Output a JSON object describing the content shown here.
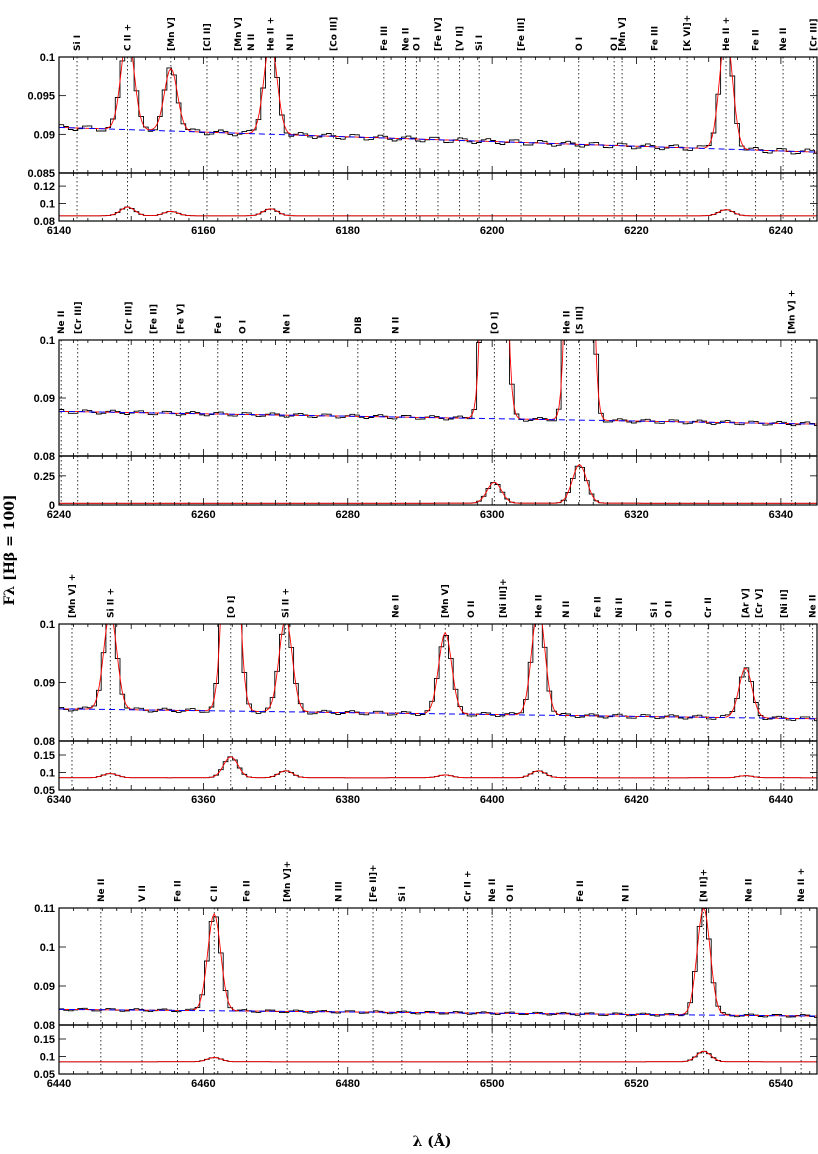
{
  "chart_data": {
    "type": "line",
    "xlabel": "λ (Å)",
    "ylabel": "Fλ [Hβ = 100]",
    "colors": {
      "observed": "#000000",
      "model": "#ff0000",
      "continuum": "#0000ff",
      "line_marker": "#000000"
    },
    "panels": [
      {
        "name": "panel-1",
        "xlim": [
          6140,
          6245
        ],
        "xticks": [
          6140,
          6160,
          6180,
          6200,
          6220,
          6240
        ],
        "upper": {
          "ylim": [
            0.085,
            0.1
          ],
          "yticks": [
            0.09,
            0.095,
            0.1
          ],
          "ytick_labels": [
            "0.09",
            "0.095",
            "0.1"
          ],
          "bottom_label": "0.085"
        },
        "lower": {
          "ylim": [
            0.08,
            0.135
          ],
          "yticks": [
            0.08,
            0.1,
            0.12
          ],
          "ytick_labels": [
            "0.08",
            "0.1",
            "0.12"
          ],
          "base": 0.086
        },
        "continuum": [
          [
            6140,
            0.0909
          ],
          [
            6245,
            0.0877
          ]
        ],
        "lines": [
          {
            "w": 6142.5,
            "label": "Si I"
          },
          {
            "w": 6149.5,
            "label": "C II +",
            "peak": 0.103,
            "amp": 0.01
          },
          {
            "w": 6155.5,
            "label": "[Mn V]",
            "peak": 0.0985,
            "amp": 0.005
          },
          {
            "w": 6160.5,
            "label": "[Cl II]"
          },
          {
            "w": 6164.8,
            "label": "[Mn V]"
          },
          {
            "w": 6166.6,
            "label": "N II"
          },
          {
            "w": 6169.3,
            "label": "He II +",
            "peak": 0.102,
            "amp": 0.008
          },
          {
            "w": 6172,
            "label": "N II"
          },
          {
            "w": 6178,
            "label": "[Co III]"
          },
          {
            "w": 6185,
            "label": "Fe III"
          },
          {
            "w": 6188,
            "label": "Ne II"
          },
          {
            "w": 6189.5,
            "label": "O I"
          },
          {
            "w": 6192.5,
            "label": "[Fe IV]"
          },
          {
            "w": 6195.5,
            "label": "[V II]"
          },
          {
            "w": 6198.2,
            "label": "Si I"
          },
          {
            "w": 6204,
            "label": "[Fe III]"
          },
          {
            "w": 6212,
            "label": "O I"
          },
          {
            "w": 6216.9,
            "label": "O I"
          },
          {
            "w": 6218,
            "label": "[Mn V]"
          },
          {
            "w": 6222.5,
            "label": "Fe III"
          },
          {
            "w": 6227,
            "label": "[K VI]+"
          },
          {
            "w": 6232.4,
            "label": "He II +",
            "peak": 0.103,
            "amp": 0.007
          },
          {
            "w": 6236.5,
            "label": "Fe II"
          },
          {
            "w": 6240.3,
            "label": "Ne II"
          },
          {
            "w": 6244.5,
            "label": "[Cr III]"
          }
        ]
      },
      {
        "name": "panel-2",
        "xlim": [
          6240,
          6345
        ],
        "xticks": [
          6240,
          6260,
          6280,
          6300,
          6320,
          6340
        ],
        "upper": {
          "ylim": [
            0.08,
            0.1
          ],
          "yticks": [
            0.09,
            0.1
          ],
          "ytick_labels": [
            "0.09",
            "0.1"
          ],
          "bottom_label": "0.08"
        },
        "lower": {
          "ylim": [
            0,
            0.42
          ],
          "yticks": [
            0,
            0.25
          ],
          "ytick_labels": [
            "0",
            "0.25"
          ],
          "base": 0.015
        },
        "continuum": [
          [
            6240,
            0.0877
          ],
          [
            6345,
            0.0855
          ]
        ],
        "lines": [
          {
            "w": 6240.3,
            "label": "Ne II"
          },
          {
            "w": 6242.6,
            "label": "[Cr III]"
          },
          {
            "w": 6249.6,
            "label": "[Cr III]"
          },
          {
            "w": 6253.1,
            "label": "[Fe II]"
          },
          {
            "w": 6256.8,
            "label": "[Fe V]"
          },
          {
            "w": 6262,
            "label": "Fe I"
          },
          {
            "w": 6265.4,
            "label": "O I"
          },
          {
            "w": 6271.5,
            "label": "Ne I"
          },
          {
            "w": 6281.4,
            "label": "DIB"
          },
          {
            "w": 6286.6,
            "label": "N II"
          },
          {
            "w": 6300.3,
            "label": "[O I]",
            "peak": 0.3,
            "amp": 0.18
          },
          {
            "w": 6310.3,
            "label": "He II"
          },
          {
            "w": 6312.1,
            "label": "[S III]",
            "peak": 0.4,
            "amp": 0.33
          },
          {
            "w": 6341.5,
            "label": "[Mn V] +"
          }
        ]
      },
      {
        "name": "panel-3",
        "xlim": [
          6340,
          6445
        ],
        "xticks": [
          6340,
          6360,
          6380,
          6400,
          6420,
          6440
        ],
        "upper": {
          "ylim": [
            0.08,
            0.1
          ],
          "yticks": [
            0.09,
            0.1
          ],
          "ytick_labels": [
            "0.09",
            "0.1"
          ],
          "bottom_label": "0.08"
        },
        "lower": {
          "ylim": [
            0.05,
            0.19
          ],
          "yticks": [
            0.05,
            0.1,
            0.15
          ],
          "ytick_labels": [
            "0.05",
            "0.1",
            "0.15"
          ],
          "base": 0.085
        },
        "continuum": [
          [
            6340,
            0.0855
          ],
          [
            6445,
            0.0838
          ]
        ],
        "lines": [
          {
            "w": 6341.8,
            "label": "[Mn V] +"
          },
          {
            "w": 6347.1,
            "label": "Si II +",
            "peak": 0.102,
            "amp": 0.012
          },
          {
            "w": 6363.8,
            "label": "[O I]",
            "peak": 0.14,
            "amp": 0.06
          },
          {
            "w": 6371.4,
            "label": "Si II +",
            "peak": 0.101,
            "amp": 0.02
          },
          {
            "w": 6386.6,
            "label": "Ne II"
          },
          {
            "w": 6393.5,
            "label": "[Mn V]",
            "peak": 0.0985,
            "amp": 0.008
          },
          {
            "w": 6397.1,
            "label": "O II"
          },
          {
            "w": 6401.5,
            "label": "[Ni III]+"
          },
          {
            "w": 6406.4,
            "label": "He II",
            "peak": 0.103,
            "amp": 0.02
          },
          {
            "w": 6410.2,
            "label": "N II"
          },
          {
            "w": 6414.6,
            "label": "Fe II"
          },
          {
            "w": 6417.6,
            "label": "Ni II"
          },
          {
            "w": 6422.4,
            "label": "Si I"
          },
          {
            "w": 6424.4,
            "label": "O II"
          },
          {
            "w": 6429.9,
            "label": "Cr II"
          },
          {
            "w": 6435.1,
            "label": "[Ar V]",
            "peak": 0.0925,
            "amp": 0.006
          },
          {
            "w": 6437,
            "label": "[Cr V]"
          },
          {
            "w": 6440.4,
            "label": "[Ni II]"
          },
          {
            "w": 6444.4,
            "label": "Ne II"
          }
        ]
      },
      {
        "name": "panel-4",
        "xlim": [
          6440,
          6545
        ],
        "xticks": [
          6440,
          6460,
          6480,
          6500,
          6520,
          6540
        ],
        "upper": {
          "ylim": [
            0.08,
            0.11
          ],
          "yticks": [
            0.09,
            0.1,
            0.11
          ],
          "ytick_labels": [
            "0.09",
            "0.1",
            "0.11"
          ],
          "bottom_label": "0.08"
        },
        "lower": {
          "ylim": [
            0.05,
            0.19
          ],
          "yticks": [
            0.05,
            0.1,
            0.15
          ],
          "ytick_labels": [
            "0.05",
            "0.1",
            "0.15"
          ],
          "base": 0.085
        },
        "continuum": [
          [
            6440,
            0.084
          ],
          [
            6545,
            0.0823
          ]
        ],
        "lines": [
          {
            "w": 6445.8,
            "label": "Ne II"
          },
          {
            "w": 6451.5,
            "label": "V II"
          },
          {
            "w": 6456.4,
            "label": "Fe II"
          },
          {
            "w": 6461.5,
            "label": "C II",
            "peak": 0.1085,
            "amp": 0.012
          },
          {
            "w": 6466,
            "label": "Fe II"
          },
          {
            "w": 6471.6,
            "label": "[Mn V]+"
          },
          {
            "w": 6478.7,
            "label": "N III"
          },
          {
            "w": 6483.5,
            "label": "[Fe II]+"
          },
          {
            "w": 6487.5,
            "label": "Si I"
          },
          {
            "w": 6496.6,
            "label": "Cr II +"
          },
          {
            "w": 6500,
            "label": "Ne II"
          },
          {
            "w": 6502.5,
            "label": "O II"
          },
          {
            "w": 6512.2,
            "label": "Fe II"
          },
          {
            "w": 6518.5,
            "label": "N II"
          },
          {
            "w": 6529.3,
            "label": "[N II]+",
            "peak": 0.11,
            "amp": 0.03
          },
          {
            "w": 6535.5,
            "label": "Ne II"
          },
          {
            "w": 6542.8,
            "label": "Ne II +"
          }
        ]
      }
    ]
  }
}
